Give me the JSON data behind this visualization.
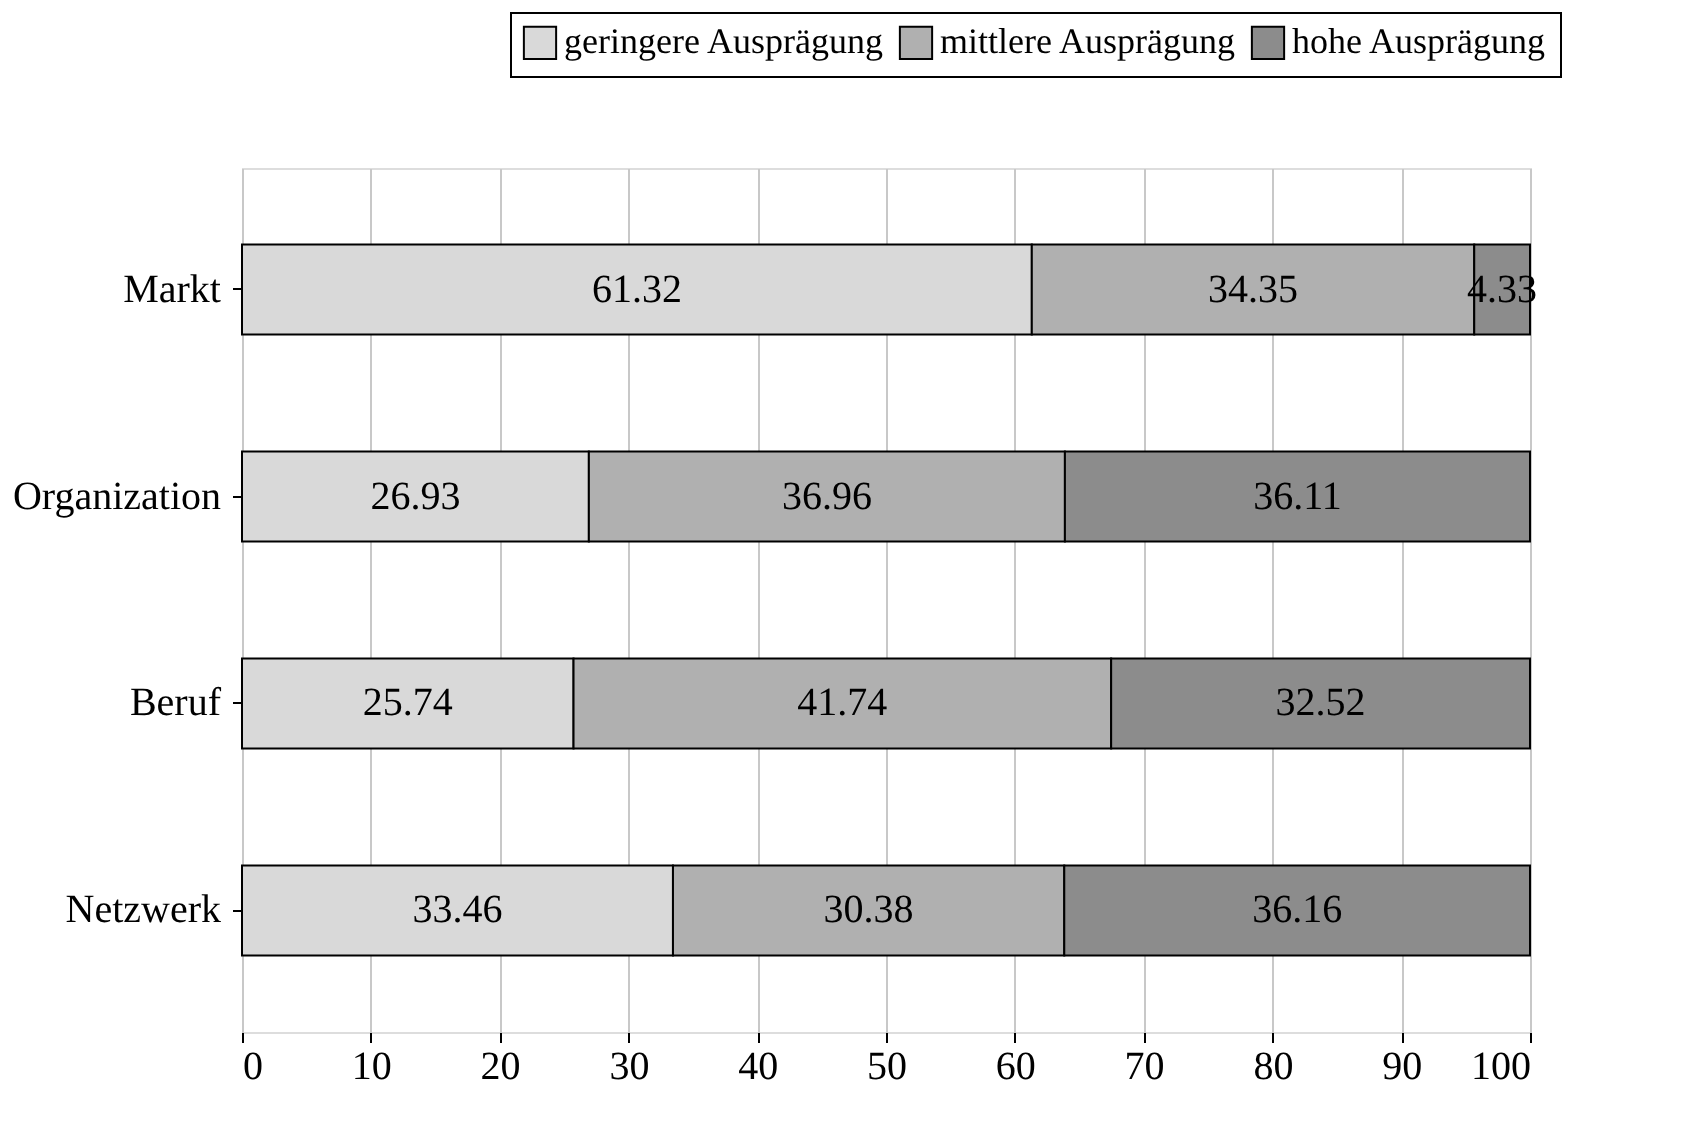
{
  "chart_data": {
    "type": "bar",
    "orientation": "horizontal",
    "stacked": true,
    "categories": [
      "Markt",
      "Organization",
      "Beruf",
      "Netzwerk"
    ],
    "series": [
      {
        "name": "geringere Ausprägung",
        "color": "#d9d9d9",
        "values": [
          61.32,
          26.93,
          25.74,
          33.46
        ]
      },
      {
        "name": "mittlere Ausprägung",
        "color": "#b0b0b0",
        "values": [
          34.35,
          36.96,
          41.74,
          30.38
        ]
      },
      {
        "name": "hohe Ausprägung",
        "color": "#8c8c8c",
        "values": [
          4.33,
          36.11,
          32.52,
          36.16
        ]
      }
    ],
    "xlim": [
      0,
      100
    ],
    "xticks": [
      0,
      10,
      20,
      30,
      40,
      50,
      60,
      70,
      80,
      90,
      100
    ],
    "grid": "x",
    "legend": "top right",
    "data_labels": true
  }
}
